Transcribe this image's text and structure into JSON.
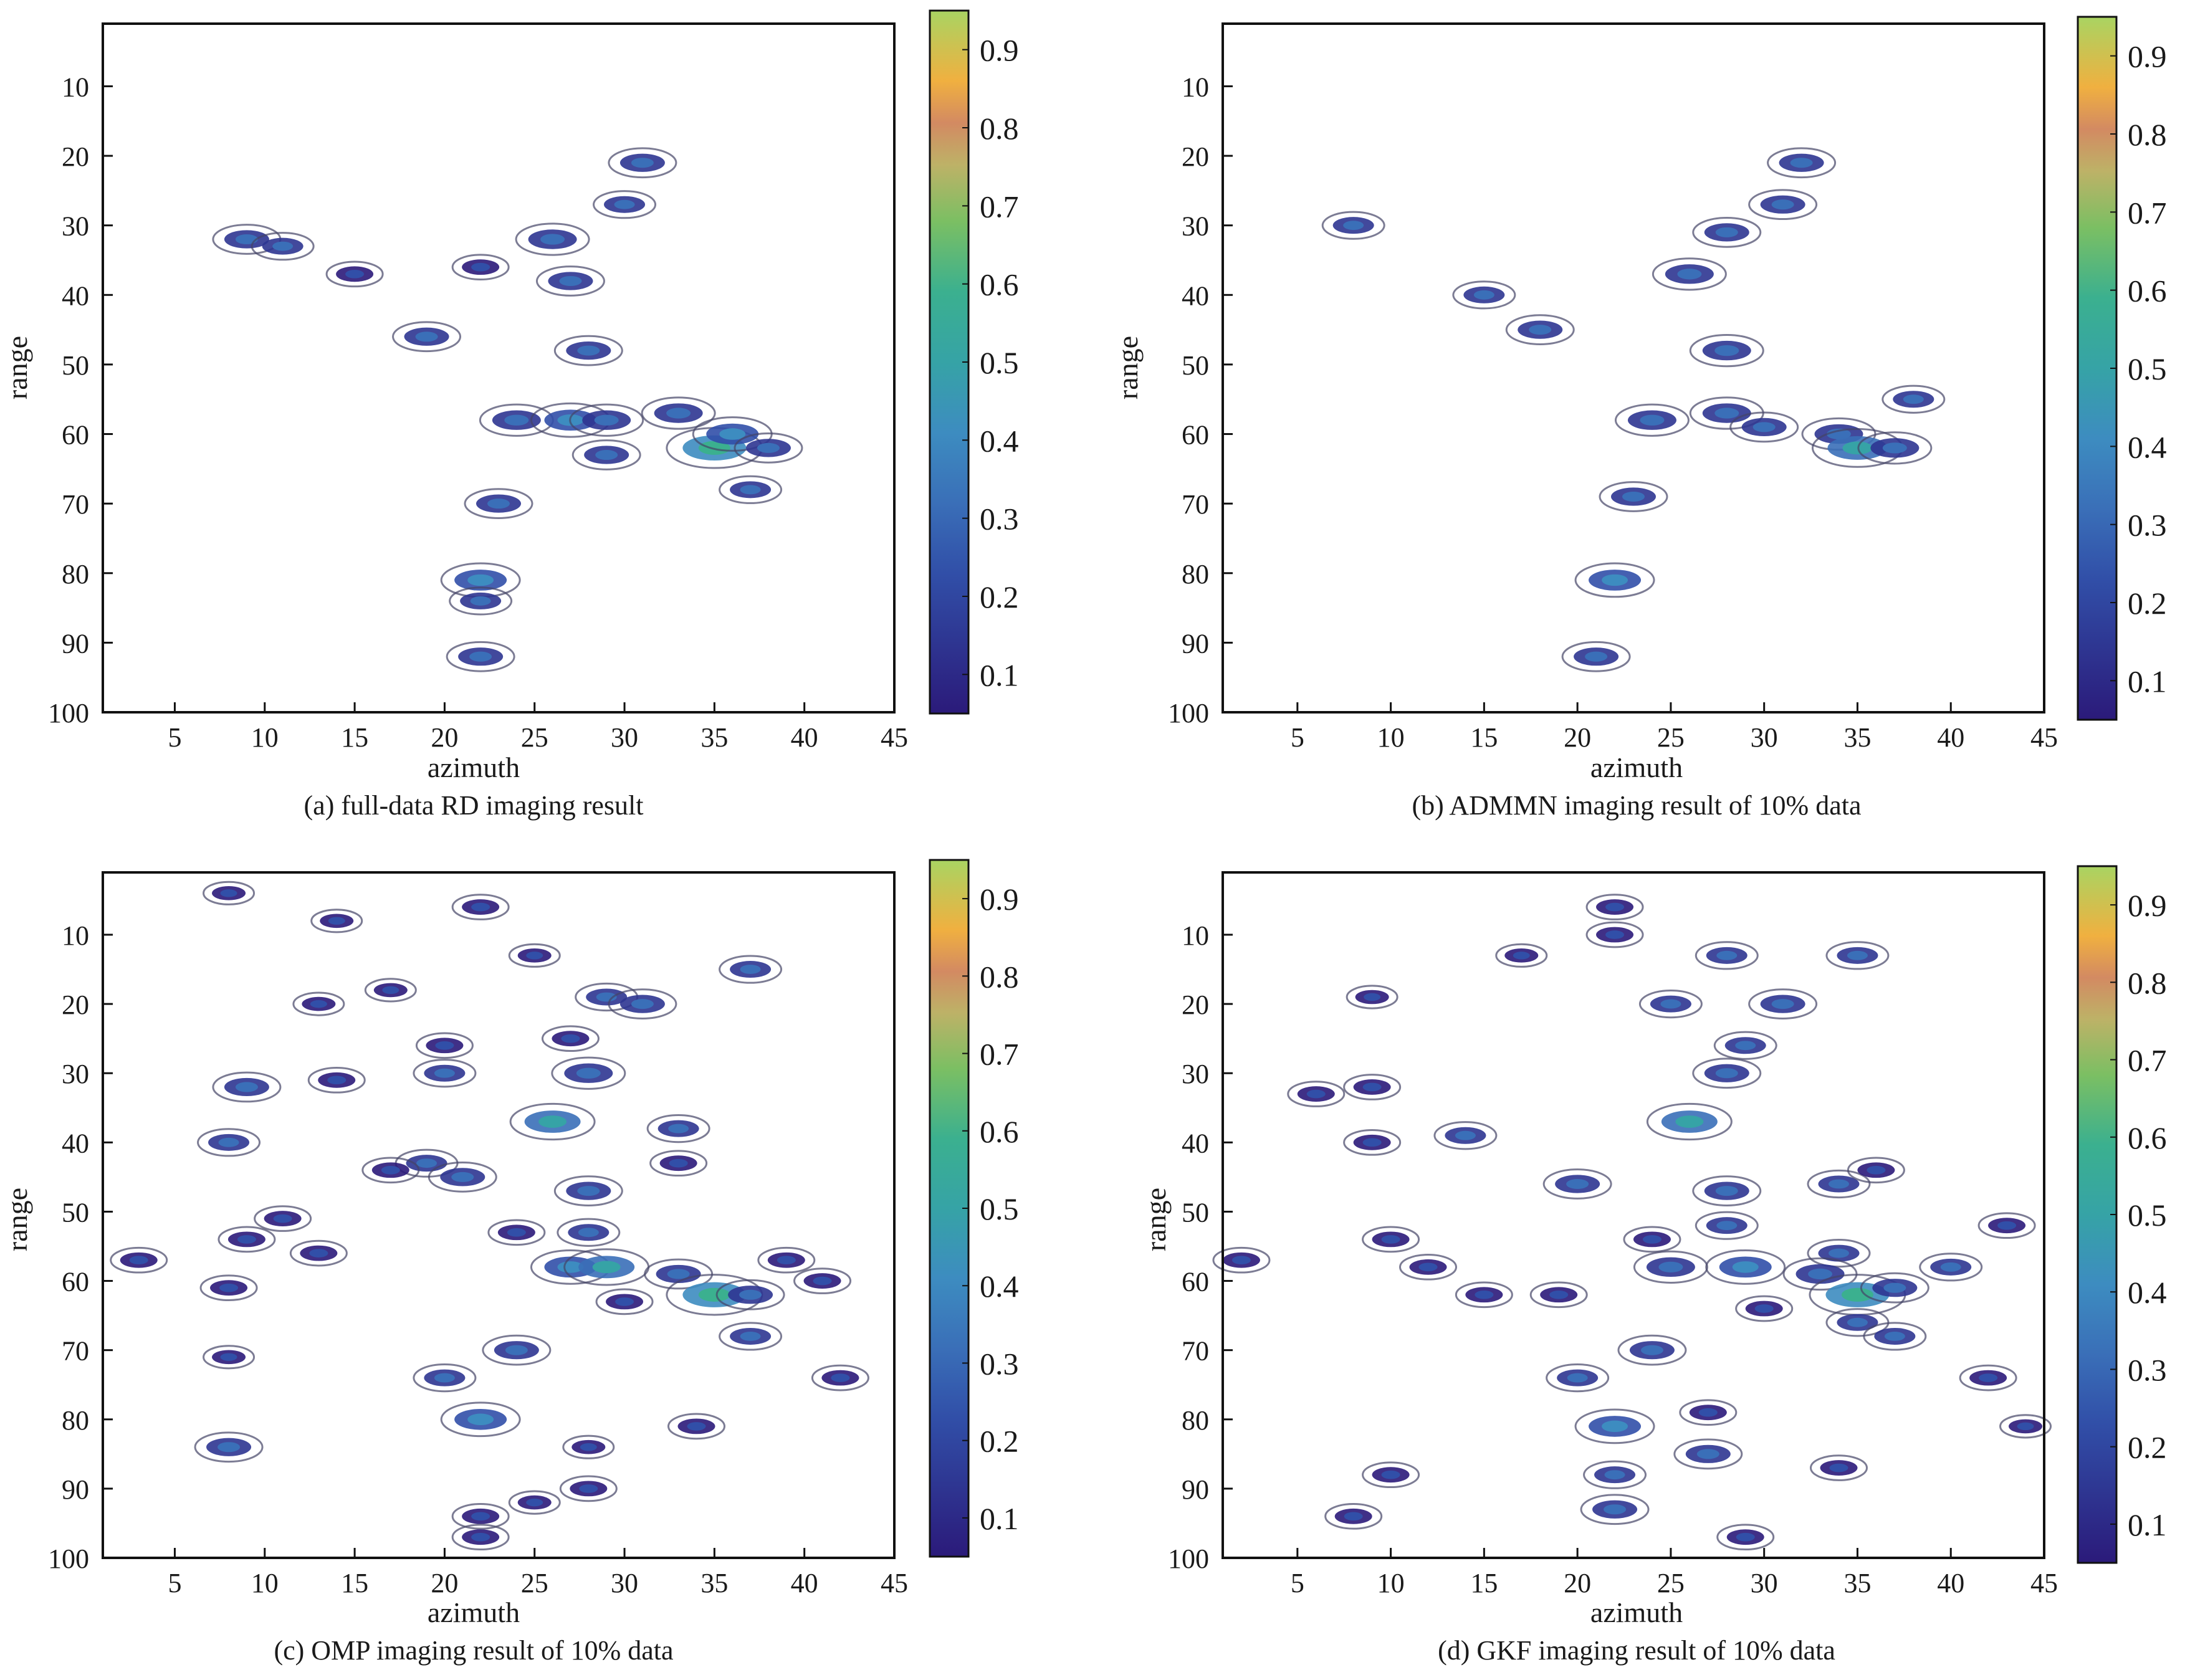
{
  "chart_data": [
    {
      "type": "heatmap",
      "caption": "(a) full-data RD imaging result",
      "xlabel": "azimuth",
      "ylabel": "range",
      "xticks": [
        5,
        10,
        15,
        20,
        25,
        30,
        35,
        40,
        45
      ],
      "yticks": [
        10,
        20,
        30,
        40,
        50,
        60,
        70,
        80,
        90,
        100
      ],
      "xlim": [
        1,
        45
      ],
      "ylim": [
        100,
        1
      ],
      "colorbar": {
        "ticks": [
          0.1,
          0.2,
          0.3,
          0.4,
          0.5,
          0.6,
          0.7,
          0.8,
          0.9
        ],
        "range": [
          0.05,
          0.95
        ]
      },
      "points": [
        {
          "x": 9,
          "y": 32,
          "v": 0.3
        },
        {
          "x": 11,
          "y": 33,
          "v": 0.25
        },
        {
          "x": 19,
          "y": 46,
          "v": 0.3
        },
        {
          "x": 28,
          "y": 48,
          "v": 0.3
        },
        {
          "x": 24,
          "y": 58,
          "v": 0.35
        },
        {
          "x": 27,
          "y": 58,
          "v": 0.4
        },
        {
          "x": 29,
          "y": 58,
          "v": 0.35
        },
        {
          "x": 33,
          "y": 57,
          "v": 0.35
        },
        {
          "x": 35,
          "y": 62,
          "v": 0.55
        },
        {
          "x": 36,
          "y": 60,
          "v": 0.4
        },
        {
          "x": 38,
          "y": 62,
          "v": 0.3
        },
        {
          "x": 29,
          "y": 63,
          "v": 0.3
        },
        {
          "x": 27,
          "y": 38,
          "v": 0.3
        },
        {
          "x": 26,
          "y": 32,
          "v": 0.35
        },
        {
          "x": 31,
          "y": 21,
          "v": 0.3
        },
        {
          "x": 30,
          "y": 27,
          "v": 0.25
        },
        {
          "x": 22,
          "y": 81,
          "v": 0.4
        },
        {
          "x": 22,
          "y": 92,
          "v": 0.3
        },
        {
          "x": 23,
          "y": 70,
          "v": 0.3
        },
        {
          "x": 22,
          "y": 84,
          "v": 0.25
        },
        {
          "x": 37,
          "y": 68,
          "v": 0.25
        },
        {
          "x": 15,
          "y": 37,
          "v": 0.2
        },
        {
          "x": 22,
          "y": 36,
          "v": 0.2
        }
      ]
    },
    {
      "type": "heatmap",
      "caption": "(b) ADMMN imaging result of 10% data",
      "xlabel": "azimuth",
      "ylabel": "range",
      "xticks": [
        5,
        10,
        15,
        20,
        25,
        30,
        35,
        40,
        45
      ],
      "yticks": [
        10,
        20,
        30,
        40,
        50,
        60,
        70,
        80,
        90,
        100
      ],
      "xlim": [
        1,
        45
      ],
      "ylim": [
        100,
        1
      ],
      "colorbar": {
        "ticks": [
          0.1,
          0.2,
          0.3,
          0.4,
          0.5,
          0.6,
          0.7,
          0.8,
          0.9
        ],
        "range": [
          0.05,
          0.95
        ]
      },
      "points": [
        {
          "x": 8,
          "y": 30,
          "v": 0.25
        },
        {
          "x": 15,
          "y": 40,
          "v": 0.25
        },
        {
          "x": 18,
          "y": 45,
          "v": 0.3
        },
        {
          "x": 28,
          "y": 48,
          "v": 0.35
        },
        {
          "x": 24,
          "y": 58,
          "v": 0.35
        },
        {
          "x": 28,
          "y": 57,
          "v": 0.35
        },
        {
          "x": 30,
          "y": 59,
          "v": 0.3
        },
        {
          "x": 34,
          "y": 60,
          "v": 0.35
        },
        {
          "x": 35,
          "y": 62,
          "v": 0.5
        },
        {
          "x": 37,
          "y": 62,
          "v": 0.35
        },
        {
          "x": 26,
          "y": 37,
          "v": 0.35
        },
        {
          "x": 28,
          "y": 31,
          "v": 0.3
        },
        {
          "x": 31,
          "y": 27,
          "v": 0.3
        },
        {
          "x": 32,
          "y": 21,
          "v": 0.3
        },
        {
          "x": 22,
          "y": 81,
          "v": 0.4
        },
        {
          "x": 21,
          "y": 92,
          "v": 0.3
        },
        {
          "x": 23,
          "y": 69,
          "v": 0.3
        },
        {
          "x": 38,
          "y": 55,
          "v": 0.25
        }
      ]
    },
    {
      "type": "heatmap",
      "caption": "(c) OMP imaging result of 10% data",
      "xlabel": "azimuth",
      "ylabel": "range",
      "xticks": [
        5,
        10,
        15,
        20,
        25,
        30,
        35,
        40,
        45
      ],
      "yticks": [
        10,
        20,
        30,
        40,
        50,
        60,
        70,
        80,
        90,
        100
      ],
      "xlim": [
        1,
        45
      ],
      "ylim": [
        100,
        1
      ],
      "colorbar": {
        "ticks": [
          0.1,
          0.2,
          0.3,
          0.4,
          0.5,
          0.6,
          0.7,
          0.8,
          0.9
        ],
        "range": [
          0.05,
          0.95
        ]
      },
      "points": [
        {
          "x": 8,
          "y": 4,
          "v": 0.15
        },
        {
          "x": 14,
          "y": 8,
          "v": 0.15
        },
        {
          "x": 22,
          "y": 6,
          "v": 0.2
        },
        {
          "x": 25,
          "y": 13,
          "v": 0.15
        },
        {
          "x": 37,
          "y": 15,
          "v": 0.25
        },
        {
          "x": 17,
          "y": 18,
          "v": 0.15
        },
        {
          "x": 13,
          "y": 20,
          "v": 0.15
        },
        {
          "x": 29,
          "y": 19,
          "v": 0.25
        },
        {
          "x": 31,
          "y": 20,
          "v": 0.3
        },
        {
          "x": 20,
          "y": 26,
          "v": 0.2
        },
        {
          "x": 27,
          "y": 25,
          "v": 0.2
        },
        {
          "x": 20,
          "y": 30,
          "v": 0.25
        },
        {
          "x": 28,
          "y": 30,
          "v": 0.35
        },
        {
          "x": 9,
          "y": 32,
          "v": 0.3
        },
        {
          "x": 14,
          "y": 31,
          "v": 0.2
        },
        {
          "x": 26,
          "y": 37,
          "v": 0.45
        },
        {
          "x": 33,
          "y": 38,
          "v": 0.25
        },
        {
          "x": 8,
          "y": 40,
          "v": 0.25
        },
        {
          "x": 19,
          "y": 43,
          "v": 0.25
        },
        {
          "x": 21,
          "y": 45,
          "v": 0.3
        },
        {
          "x": 17,
          "y": 44,
          "v": 0.2
        },
        {
          "x": 28,
          "y": 47,
          "v": 0.3
        },
        {
          "x": 33,
          "y": 43,
          "v": 0.2
        },
        {
          "x": 11,
          "y": 51,
          "v": 0.2
        },
        {
          "x": 9,
          "y": 54,
          "v": 0.2
        },
        {
          "x": 13,
          "y": 56,
          "v": 0.2
        },
        {
          "x": 24,
          "y": 53,
          "v": 0.2
        },
        {
          "x": 28,
          "y": 53,
          "v": 0.25
        },
        {
          "x": 3,
          "y": 57,
          "v": 0.2
        },
        {
          "x": 27,
          "y": 58,
          "v": 0.4
        },
        {
          "x": 29,
          "y": 58,
          "v": 0.45
        },
        {
          "x": 33,
          "y": 59,
          "v": 0.3
        },
        {
          "x": 35,
          "y": 62,
          "v": 0.55
        },
        {
          "x": 37,
          "y": 62,
          "v": 0.3
        },
        {
          "x": 39,
          "y": 57,
          "v": 0.2
        },
        {
          "x": 41,
          "y": 60,
          "v": 0.2
        },
        {
          "x": 8,
          "y": 61,
          "v": 0.2
        },
        {
          "x": 30,
          "y": 63,
          "v": 0.2
        },
        {
          "x": 37,
          "y": 68,
          "v": 0.25
        },
        {
          "x": 24,
          "y": 70,
          "v": 0.3
        },
        {
          "x": 8,
          "y": 71,
          "v": 0.15
        },
        {
          "x": 20,
          "y": 74,
          "v": 0.25
        },
        {
          "x": 42,
          "y": 74,
          "v": 0.2
        },
        {
          "x": 22,
          "y": 80,
          "v": 0.4
        },
        {
          "x": 34,
          "y": 81,
          "v": 0.2
        },
        {
          "x": 8,
          "y": 84,
          "v": 0.3
        },
        {
          "x": 28,
          "y": 84,
          "v": 0.15
        },
        {
          "x": 22,
          "y": 94,
          "v": 0.2
        },
        {
          "x": 28,
          "y": 90,
          "v": 0.2
        },
        {
          "x": 22,
          "y": 97,
          "v": 0.2
        },
        {
          "x": 25,
          "y": 92,
          "v": 0.15
        }
      ]
    },
    {
      "type": "heatmap",
      "caption": "(d) GKF imaging result of 10% data",
      "xlabel": "azimuth",
      "ylabel": "range",
      "xticks": [
        5,
        10,
        15,
        20,
        25,
        30,
        35,
        40,
        45
      ],
      "yticks": [
        10,
        20,
        30,
        40,
        50,
        60,
        70,
        80,
        90,
        100
      ],
      "xlim": [
        1,
        45
      ],
      "ylim": [
        100,
        1
      ],
      "colorbar": {
        "ticks": [
          0.1,
          0.2,
          0.3,
          0.4,
          0.5,
          0.6,
          0.7,
          0.8,
          0.9
        ],
        "range": [
          0.05,
          0.95
        ]
      },
      "points": [
        {
          "x": 22,
          "y": 6,
          "v": 0.2
        },
        {
          "x": 28,
          "y": 13,
          "v": 0.25
        },
        {
          "x": 35,
          "y": 13,
          "v": 0.25
        },
        {
          "x": 17,
          "y": 13,
          "v": 0.15
        },
        {
          "x": 25,
          "y": 20,
          "v": 0.25
        },
        {
          "x": 31,
          "y": 20,
          "v": 0.3
        },
        {
          "x": 22,
          "y": 10,
          "v": 0.2
        },
        {
          "x": 9,
          "y": 19,
          "v": 0.15
        },
        {
          "x": 29,
          "y": 26,
          "v": 0.25
        },
        {
          "x": 28,
          "y": 30,
          "v": 0.3
        },
        {
          "x": 6,
          "y": 33,
          "v": 0.2
        },
        {
          "x": 9,
          "y": 32,
          "v": 0.2
        },
        {
          "x": 26,
          "y": 37,
          "v": 0.45
        },
        {
          "x": 14,
          "y": 39,
          "v": 0.25
        },
        {
          "x": 9,
          "y": 40,
          "v": 0.2
        },
        {
          "x": 20,
          "y": 46,
          "v": 0.3
        },
        {
          "x": 28,
          "y": 47,
          "v": 0.3
        },
        {
          "x": 34,
          "y": 46,
          "v": 0.25
        },
        {
          "x": 36,
          "y": 44,
          "v": 0.2
        },
        {
          "x": 10,
          "y": 54,
          "v": 0.2
        },
        {
          "x": 24,
          "y": 54,
          "v": 0.2
        },
        {
          "x": 28,
          "y": 52,
          "v": 0.25
        },
        {
          "x": 34,
          "y": 56,
          "v": 0.25
        },
        {
          "x": 2,
          "y": 57,
          "v": 0.2
        },
        {
          "x": 12,
          "y": 58,
          "v": 0.2
        },
        {
          "x": 25,
          "y": 58,
          "v": 0.35
        },
        {
          "x": 29,
          "y": 58,
          "v": 0.4
        },
        {
          "x": 33,
          "y": 59,
          "v": 0.35
        },
        {
          "x": 35,
          "y": 62,
          "v": 0.55
        },
        {
          "x": 37,
          "y": 61,
          "v": 0.3
        },
        {
          "x": 40,
          "y": 58,
          "v": 0.25
        },
        {
          "x": 43,
          "y": 52,
          "v": 0.2
        },
        {
          "x": 15,
          "y": 62,
          "v": 0.2
        },
        {
          "x": 19,
          "y": 62,
          "v": 0.2
        },
        {
          "x": 30,
          "y": 64,
          "v": 0.2
        },
        {
          "x": 35,
          "y": 66,
          "v": 0.25
        },
        {
          "x": 37,
          "y": 68,
          "v": 0.25
        },
        {
          "x": 24,
          "y": 70,
          "v": 0.3
        },
        {
          "x": 20,
          "y": 74,
          "v": 0.25
        },
        {
          "x": 42,
          "y": 74,
          "v": 0.2
        },
        {
          "x": 22,
          "y": 81,
          "v": 0.4
        },
        {
          "x": 27,
          "y": 79,
          "v": 0.2
        },
        {
          "x": 27,
          "y": 85,
          "v": 0.3
        },
        {
          "x": 22,
          "y": 88,
          "v": 0.25
        },
        {
          "x": 34,
          "y": 87,
          "v": 0.2
        },
        {
          "x": 10,
          "y": 88,
          "v": 0.2
        },
        {
          "x": 22,
          "y": 93,
          "v": 0.3
        },
        {
          "x": 29,
          "y": 97,
          "v": 0.2
        },
        {
          "x": 8,
          "y": 94,
          "v": 0.2
        },
        {
          "x": 44,
          "y": 81,
          "v": 0.15
        }
      ]
    }
  ]
}
